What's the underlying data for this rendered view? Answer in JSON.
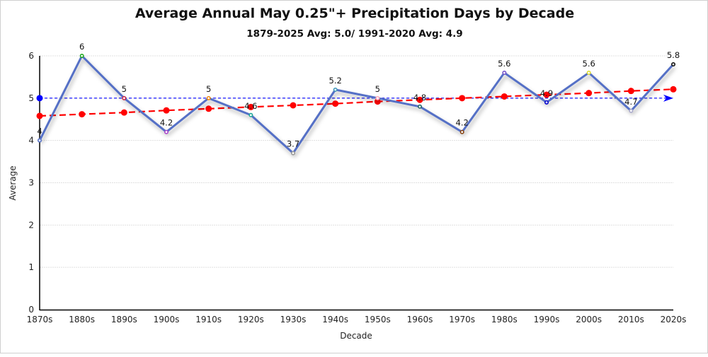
{
  "chart_data": {
    "type": "line",
    "title": "Average Annual May 0.25\"+ Precipitation Days by Decade",
    "subtitle": "1879-2025 Avg: 5.0/ 1991-2020 Avg: 4.9",
    "xlabel": "Decade",
    "ylabel": "Average",
    "ylim": [
      0,
      6
    ],
    "yticks": [
      "0",
      "1",
      "2",
      "3",
      "4",
      "5",
      "6"
    ],
    "grid": true,
    "categories": [
      "1870s",
      "1880s",
      "1890s",
      "1900s",
      "1910s",
      "1920s",
      "1930s",
      "1940s",
      "1950s",
      "1960s",
      "1970s",
      "1980s",
      "1990s",
      "2000s",
      "2010s",
      "2020s"
    ],
    "series": [
      {
        "name": "Average",
        "color": "#5470c6",
        "values": [
          4,
          6,
          5,
          4.2,
          5,
          4.6,
          3.7,
          5.2,
          5,
          4.8,
          4.2,
          5.6,
          4.9,
          5.6,
          4.7,
          5.8
        ],
        "labels": [
          "4",
          "6",
          "5",
          "4.2",
          "5",
          "4.6",
          "3.7",
          "5.2",
          "5",
          "4.8",
          "4.2",
          "5.6",
          "4.9",
          "5.6",
          "4.7",
          "5.8"
        ],
        "marker_colors": [
          "#5470c6",
          "#22aa22",
          "#cc2244",
          "#aa44cc",
          "#ee8811",
          "#22aa99",
          "#999999",
          "#4499bb",
          "#ffaabb",
          "#226666",
          "#884411",
          "#7755cc",
          "#0000cc",
          "#dddd33",
          "#aaaacc",
          "#111111"
        ]
      },
      {
        "name": "Trend",
        "color": "#ff0000",
        "style": "dashed",
        "values": [
          4.58,
          4.62,
          4.66,
          4.71,
          4.75,
          4.79,
          4.83,
          4.87,
          4.92,
          4.96,
          5.0,
          5.04,
          5.08,
          5.12,
          5.17,
          5.21
        ]
      },
      {
        "name": "1879-2025 Avg",
        "color": "#0000ff",
        "style": "dashed",
        "value": 5.0
      }
    ]
  }
}
